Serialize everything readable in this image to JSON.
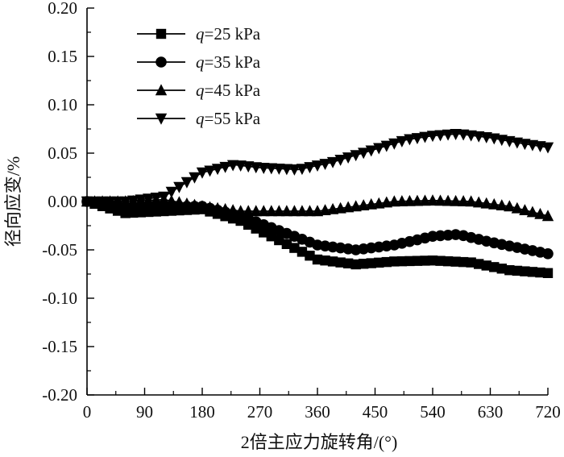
{
  "chart_data": {
    "type": "line",
    "title": "",
    "xlabel": "2倍主应力旋转角/(°)",
    "ylabel": "径向应变/%",
    "xlim": [
      0,
      720
    ],
    "ylim": [
      -0.2,
      0.2
    ],
    "x_ticks": [
      0,
      90,
      180,
      270,
      360,
      450,
      540,
      630,
      720
    ],
    "y_ticks": [
      0.2,
      0.15,
      0.1,
      0.05,
      0.0,
      -0.05,
      -0.1,
      -0.15,
      -0.2
    ],
    "x_tick_labels": [
      "0",
      "90",
      "180",
      "270",
      "360",
      "450",
      "540",
      "630",
      "720"
    ],
    "y_tick_labels": [
      "0.20",
      "0.15",
      "0.10",
      "0.05",
      "0.00",
      "-0.05",
      "-0.10",
      "-0.15",
      "-0.20"
    ],
    "grid": false,
    "legend_position": "top-left",
    "series": [
      {
        "name": "q=25 kPa",
        "q": "q",
        "rest": "=25 kPa",
        "marker": "square",
        "x": [
          0,
          60,
          120,
          180,
          240,
          300,
          360,
          420,
          480,
          540,
          600,
          660,
          720
        ],
        "y": [
          0.0,
          -0.012,
          -0.01,
          -0.008,
          -0.02,
          -0.04,
          -0.06,
          -0.065,
          -0.062,
          -0.061,
          -0.063,
          -0.071,
          -0.074
        ]
      },
      {
        "name": "q=35 kPa",
        "q": "q",
        "rest": "=35 kPa",
        "marker": "circle",
        "x": [
          0,
          60,
          120,
          180,
          240,
          300,
          360,
          420,
          480,
          540,
          580,
          630,
          720
        ],
        "y": [
          0.0,
          -0.006,
          -0.005,
          -0.005,
          -0.015,
          -0.03,
          -0.045,
          -0.05,
          -0.045,
          -0.036,
          -0.034,
          -0.042,
          -0.054
        ]
      },
      {
        "name": "q=45 kPa",
        "q": "q",
        "rest": "=45 kPa",
        "marker": "triangle-up",
        "x": [
          0,
          60,
          120,
          180,
          240,
          300,
          360,
          420,
          480,
          540,
          600,
          660,
          720
        ],
        "y": [
          0.0,
          0.0,
          0.002,
          -0.005,
          -0.01,
          -0.01,
          -0.01,
          -0.005,
          0.0,
          0.001,
          0.0,
          -0.005,
          -0.015
        ]
      },
      {
        "name": "q=55 kPa",
        "q": "q",
        "rest": "=55 kPa",
        "marker": "triangle-down",
        "x": [
          0,
          60,
          120,
          180,
          230,
          270,
          330,
          380,
          440,
          500,
          540,
          580,
          630,
          680,
          720
        ],
        "y": [
          0.0,
          0.0,
          0.005,
          0.03,
          0.038,
          0.035,
          0.033,
          0.04,
          0.052,
          0.064,
          0.068,
          0.07,
          0.066,
          0.06,
          0.056
        ]
      }
    ]
  }
}
